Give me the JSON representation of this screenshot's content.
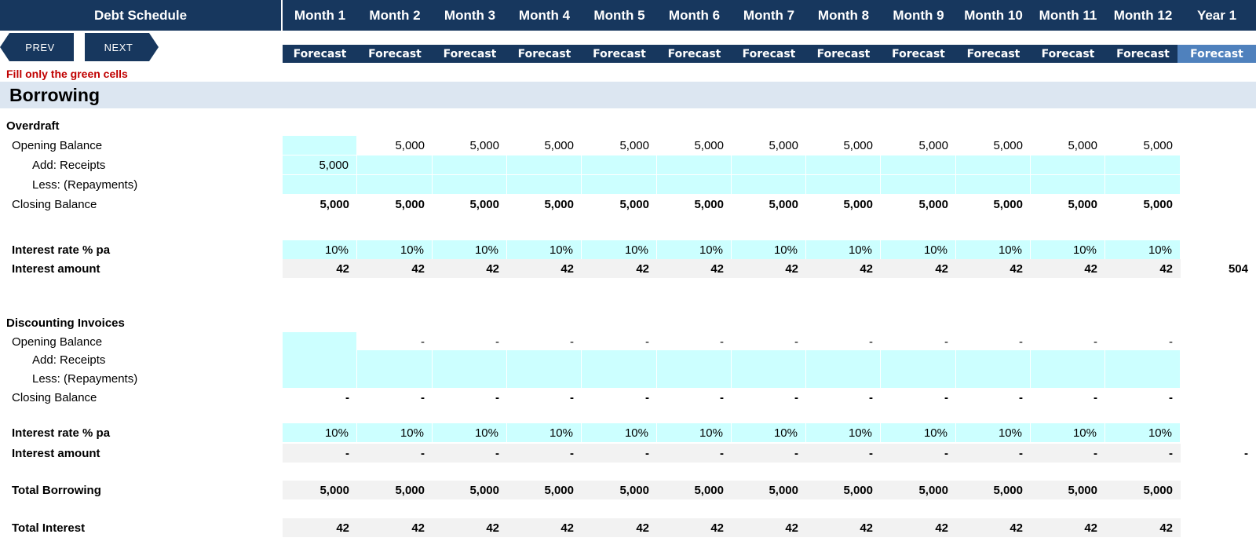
{
  "header": {
    "title": "Debt Schedule",
    "months": [
      "Month 1",
      "Month 2",
      "Month 3",
      "Month 4",
      "Month 5",
      "Month 6",
      "Month 7",
      "Month 8",
      "Month 9",
      "Month 10",
      "Month 11",
      "Month 12"
    ],
    "year": "Year 1",
    "forecast_label": "Forecast"
  },
  "nav": {
    "prev": "PREV",
    "next": "NEXT"
  },
  "note": "Fill only the green cells",
  "section_title": "Borrowing",
  "overdraft": {
    "title": "Overdraft",
    "opening_label": "Opening Balance",
    "opening": [
      "",
      "5,000",
      "5,000",
      "5,000",
      "5,000",
      "5,000",
      "5,000",
      "5,000",
      "5,000",
      "5,000",
      "5,000",
      "5,000"
    ],
    "receipts_label": "Add: Receipts",
    "receipts": [
      "5,000",
      "",
      "",
      "",
      "",
      "",
      "",
      "",
      "",
      "",
      "",
      ""
    ],
    "repayments_label": "Less: (Repayments)",
    "repayments": [
      "",
      "",
      "",
      "",
      "",
      "",
      "",
      "",
      "",
      "",
      "",
      ""
    ],
    "closing_label": "Closing Balance",
    "closing": [
      "5,000",
      "5,000",
      "5,000",
      "5,000",
      "5,000",
      "5,000",
      "5,000",
      "5,000",
      "5,000",
      "5,000",
      "5,000",
      "5,000"
    ],
    "rate_label": "Interest rate % pa",
    "rate": [
      "10%",
      "10%",
      "10%",
      "10%",
      "10%",
      "10%",
      "10%",
      "10%",
      "10%",
      "10%",
      "10%",
      "10%"
    ],
    "interest_label": "Interest amount",
    "interest": [
      "42",
      "42",
      "42",
      "42",
      "42",
      "42",
      "42",
      "42",
      "42",
      "42",
      "42",
      "42"
    ],
    "interest_year": "504"
  },
  "discounting": {
    "title": "Discounting Invoices",
    "opening_label": "Opening Balance",
    "opening": [
      "",
      "-",
      "-",
      "-",
      "-",
      "-",
      "-",
      "-",
      "-",
      "-",
      "-",
      "-"
    ],
    "receipts_label": "Add: Receipts",
    "receipts": [
      "",
      "",
      "",
      "",
      "",
      "",
      "",
      "",
      "",
      "",
      "",
      ""
    ],
    "repayments_label": "Less: (Repayments)",
    "repayments": [
      "",
      "",
      "",
      "",
      "",
      "",
      "",
      "",
      "",
      "",
      "",
      ""
    ],
    "closing_label": "Closing Balance",
    "closing": [
      "-",
      "-",
      "-",
      "-",
      "-",
      "-",
      "-",
      "-",
      "-",
      "-",
      "-",
      "-"
    ],
    "rate_label": "Interest rate % pa",
    "rate": [
      "10%",
      "10%",
      "10%",
      "10%",
      "10%",
      "10%",
      "10%",
      "10%",
      "10%",
      "10%",
      "10%",
      "10%"
    ],
    "interest_label": "Interest amount",
    "interest": [
      "-",
      "-",
      "-",
      "-",
      "-",
      "-",
      "-",
      "-",
      "-",
      "-",
      "-",
      "-"
    ],
    "interest_year": "-"
  },
  "totals": {
    "borrowing_label": "Total Borrowing",
    "borrowing": [
      "5,000",
      "5,000",
      "5,000",
      "5,000",
      "5,000",
      "5,000",
      "5,000",
      "5,000",
      "5,000",
      "5,000",
      "5,000",
      "5,000"
    ],
    "interest_label": "Total Interest",
    "interest": [
      "42",
      "42",
      "42",
      "42",
      "42",
      "42",
      "42",
      "42",
      "42",
      "42",
      "42",
      "42"
    ]
  }
}
